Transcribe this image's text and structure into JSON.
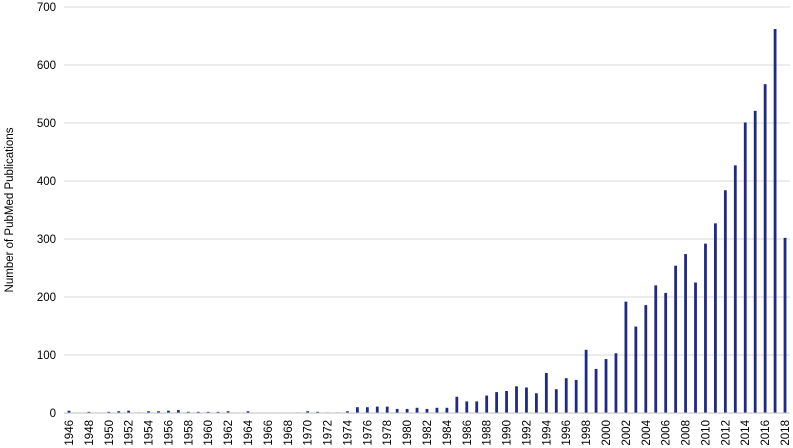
{
  "chart_data": {
    "type": "bar",
    "title": "",
    "xlabel": "",
    "ylabel": "Number of PubMed Publications",
    "ylim": [
      0,
      700
    ],
    "yticks": [
      0,
      100,
      200,
      300,
      400,
      500,
      600,
      700
    ],
    "grid": "horizontal",
    "legend": "none",
    "bar_color": "#1f2a86",
    "categories": [
      "1946",
      "1947",
      "1948",
      "1949",
      "1950",
      "1951",
      "1952",
      "1953",
      "1954",
      "1955",
      "1956",
      "1957",
      "1958",
      "1959",
      "1960",
      "1961",
      "1962",
      "1963",
      "1964",
      "1965",
      "1966",
      "1967",
      "1968",
      "1969",
      "1970",
      "1971",
      "1972",
      "1973",
      "1974",
      "1975",
      "1976",
      "1977",
      "1978",
      "1979",
      "1980",
      "1981",
      "1982",
      "1983",
      "1984",
      "1985",
      "1986",
      "1987",
      "1988",
      "1989",
      "1990",
      "1991",
      "1992",
      "1993",
      "1994",
      "1995",
      "1996",
      "1997",
      "1998",
      "1999",
      "2000",
      "2001",
      "2002",
      "2003",
      "2004",
      "2005",
      "2006",
      "2007",
      "2008",
      "2009",
      "2010",
      "2011",
      "2012",
      "2013",
      "2014",
      "2015",
      "2016",
      "2017",
      "2018"
    ],
    "tick_labels": [
      "1946",
      "",
      "1948",
      "",
      "1950",
      "",
      "1952",
      "",
      "1954",
      "",
      "1956",
      "",
      "1958",
      "",
      "1960",
      "",
      "1962",
      "",
      "1964",
      "",
      "1966",
      "",
      "1968",
      "",
      "1970",
      "",
      "1972",
      "",
      "1974",
      "",
      "1976",
      "",
      "1978",
      "",
      "1980",
      "",
      "1982",
      "",
      "1984",
      "",
      "1986",
      "",
      "1988",
      "",
      "1990",
      "",
      "1992",
      "",
      "1994",
      "",
      "1996",
      "",
      "1998",
      "",
      "2000",
      "",
      "2002",
      "",
      "2004",
      "",
      "2006",
      "",
      "2008",
      "",
      "2010",
      "",
      "2012",
      "",
      "2014",
      "",
      "2016",
      "",
      "2018"
    ],
    "values": [
      4,
      0,
      2,
      0,
      2,
      3,
      4,
      1,
      3,
      3,
      4,
      5,
      2,
      2,
      2,
      2,
      3,
      0,
      3,
      0,
      0,
      0,
      0,
      1,
      3,
      2,
      1,
      1,
      3,
      10,
      10,
      11,
      11,
      7,
      7,
      9,
      7,
      9,
      9,
      28,
      20,
      20,
      30,
      36,
      38,
      46,
      44,
      34,
      69,
      41,
      60,
      57,
      109,
      76,
      93,
      103,
      192,
      149,
      186,
      220,
      207,
      254,
      274,
      225,
      292,
      327,
      384,
      427,
      501,
      521,
      567,
      662,
      302
    ]
  }
}
